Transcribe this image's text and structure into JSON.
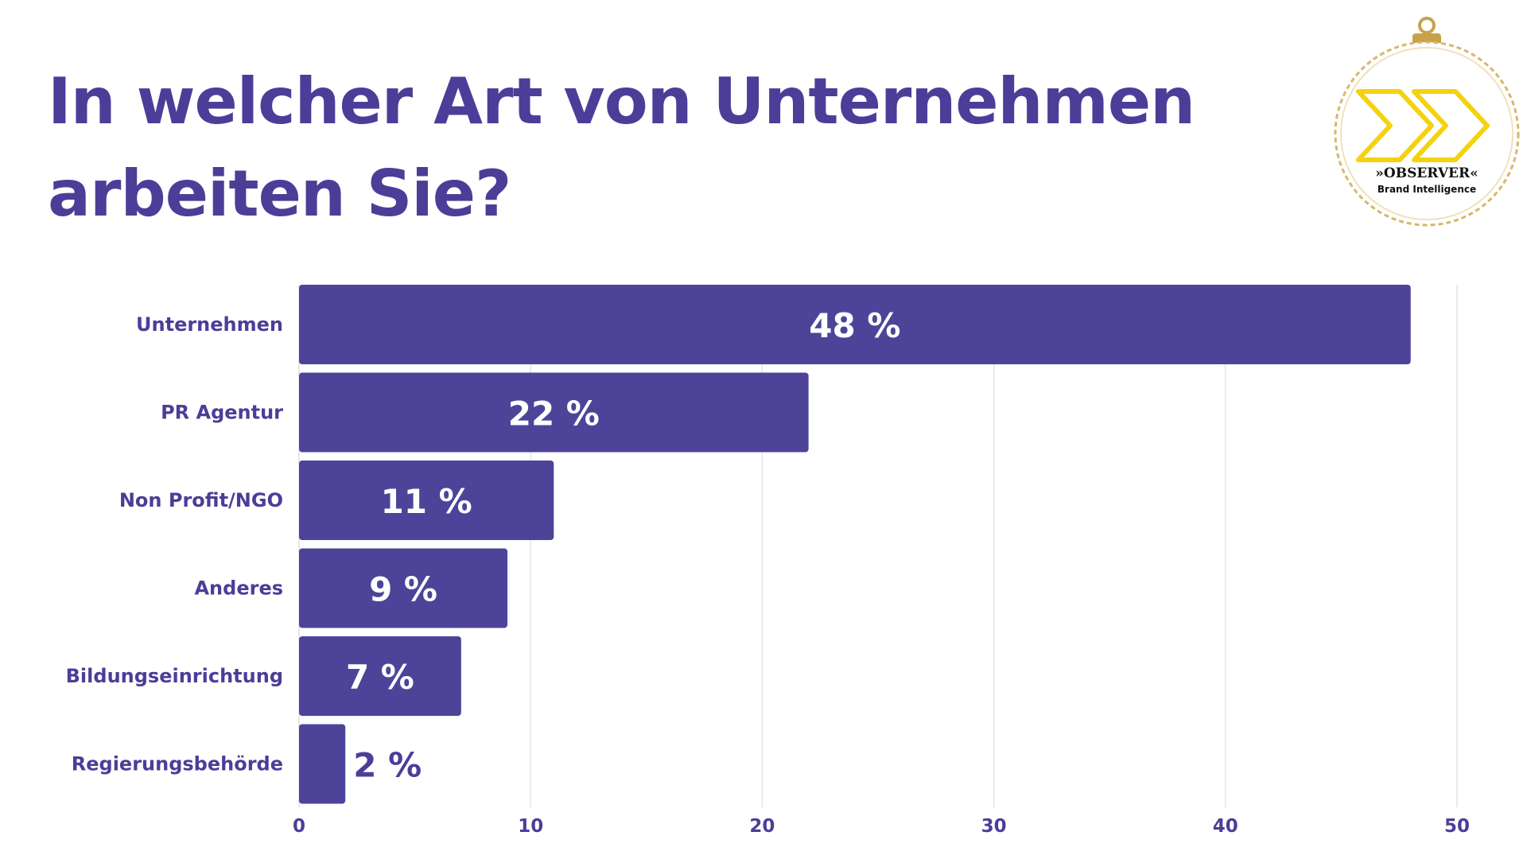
{
  "title": {
    "line1": "In welcher Art von Unternehmen",
    "line2": "arbeiten Sie?"
  },
  "logo": {
    "brand": "»OBSERVER«",
    "tagline": "Brand Intelligence",
    "icon": "double-chevron-ornament-icon",
    "colors": {
      "chevron": "#f4d20f",
      "ring": "#c9a14a"
    }
  },
  "colors": {
    "accent": "#4d3d98",
    "bar": "#4d4499",
    "grid": "#e3e3ea",
    "bar_label_inside": "#ffffff",
    "bar_label_outside": "#4d3d98"
  },
  "chart_data": {
    "type": "bar",
    "orientation": "horizontal",
    "categories": [
      "Unternehmen",
      "PR Agentur",
      "Non Profit/NGO",
      "Anderes",
      "Bildungseinrichtung",
      "Regierungsbehörde"
    ],
    "values": [
      48,
      22,
      11,
      9,
      7,
      2
    ],
    "data_labels": [
      "48 %",
      "22 %",
      "11 %",
      "9 %",
      "7 %",
      "2 %"
    ],
    "xlim": [
      0,
      50
    ],
    "xticks": [
      0,
      10,
      20,
      30,
      40,
      50
    ],
    "grid": true,
    "legend": false
  }
}
